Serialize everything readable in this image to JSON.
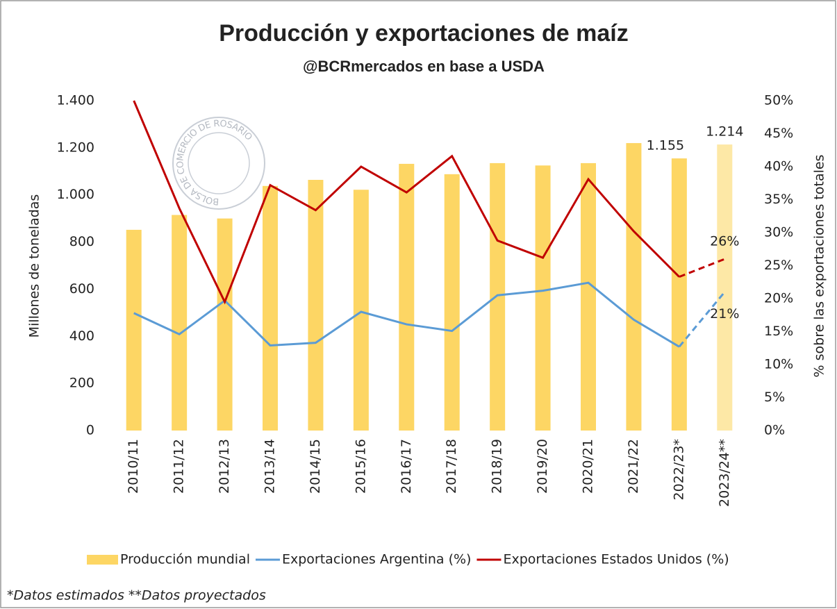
{
  "chart_data": {
    "type": "bar_line",
    "title": "Producción y exportaciones de maíz",
    "subtitle": "@BCRmercados en base a USDA",
    "watermark": "BOLSA DE COMERCIO DE ROSARIO",
    "footnote": "*Datos estimados **Datos proyectados",
    "y_label": "Millones de toneladas",
    "y2_label": "% sobre las exportaciones totales",
    "categories": [
      "2010/11",
      "2011/12",
      "2012/13",
      "2013/14",
      "2014/15",
      "2015/16",
      "2016/17",
      "2017/18",
      "2018/19",
      "2019/20",
      "2020/21",
      "2021/22",
      "2022/23*",
      "2023/24**"
    ],
    "series": [
      {
        "name": "Producción mundial",
        "kind": "bar",
        "color": "#fdd664",
        "colors": [
          "#fdd664",
          "#fdd664",
          "#fdd664",
          "#fdd664",
          "#fdd664",
          "#fdd664",
          "#fdd664",
          "#fdd664",
          "#fdd664",
          "#fdd664",
          "#fdd664",
          "#fdd664",
          "#fdd664",
          "#fde8a6"
        ],
        "values": [
          852,
          915,
          900,
          1038,
          1064,
          1022,
          1132,
          1088,
          1135,
          1125,
          1135,
          1220,
          1155,
          1214
        ],
        "value_labels": [
          null,
          null,
          null,
          null,
          null,
          null,
          null,
          null,
          null,
          null,
          null,
          null,
          "1.155",
          "1.214"
        ]
      },
      {
        "name": "Exportaciones Argentina (%)",
        "kind": "line",
        "axis": "y2",
        "color": "#5b9bd5",
        "dash_from_index": 12,
        "values": [
          17.8,
          14.6,
          19.7,
          12.9,
          13.3,
          18,
          16.1,
          15.1,
          20.5,
          21.2,
          22.4,
          16.8,
          12.7,
          21
        ],
        "value_labels": [
          null,
          null,
          null,
          null,
          null,
          null,
          null,
          null,
          null,
          null,
          null,
          null,
          null,
          "21%"
        ]
      },
      {
        "name": "Exportaciones Estados Unidos (%)",
        "kind": "line",
        "axis": "y2",
        "color": "#c00000",
        "dash_from_index": 12,
        "values": [
          50,
          33.7,
          19.5,
          37.2,
          33.4,
          40,
          36.1,
          41.6,
          28.8,
          26.2,
          38.1,
          30.2,
          23.3,
          26
        ],
        "value_labels": [
          null,
          null,
          null,
          null,
          null,
          null,
          null,
          null,
          null,
          null,
          null,
          null,
          null,
          "26%"
        ]
      }
    ],
    "ylim": [
      0,
      1400
    ],
    "yticks": [
      0,
      200,
      400,
      600,
      800,
      {
        "value": 1000,
        "label": "1.000"
      },
      {
        "value": 1200,
        "label": "1.200"
      },
      {
        "value": 1400,
        "label": "1.400"
      }
    ],
    "y2lim": [
      0,
      50
    ],
    "y2ticks": [
      {
        "value": 0,
        "label": "0%"
      },
      {
        "value": 5,
        "label": "5%"
      },
      {
        "value": 10,
        "label": "10%"
      },
      {
        "value": 15,
        "label": "15%"
      },
      {
        "value": 20,
        "label": "20%"
      },
      {
        "value": 25,
        "label": "25%"
      },
      {
        "value": 30,
        "label": "30%"
      },
      {
        "value": 35,
        "label": "35%"
      },
      {
        "value": 40,
        "label": "40%"
      },
      {
        "value": 45,
        "label": "45%"
      },
      {
        "value": 50,
        "label": "50%"
      }
    ],
    "legend": "bottom"
  }
}
